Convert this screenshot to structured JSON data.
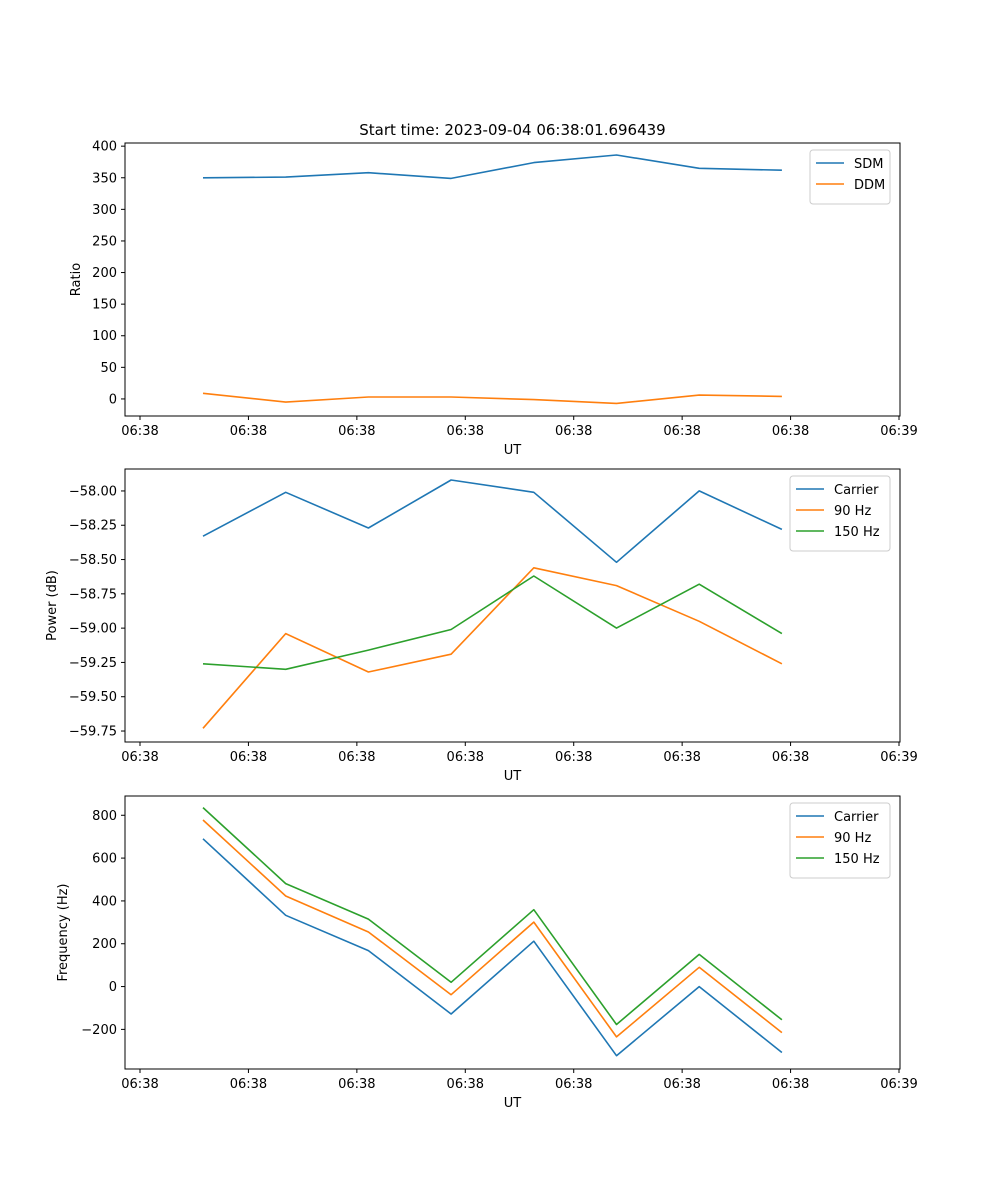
{
  "figure": {
    "title": "Start time: 2023-09-04 06:38:01.696439"
  },
  "colors": {
    "c0": "#1f77b4",
    "c1": "#ff7f0e",
    "c2": "#2ca02c"
  },
  "chart_data": [
    {
      "type": "line",
      "title": "Start time: 2023-09-04 06:38:01.696439",
      "xlabel": "UT",
      "ylabel": "Ratio",
      "x_ticks": [
        "06:38",
        "06:38",
        "06:38",
        "06:38",
        "06:38",
        "06:38",
        "06:38",
        "06:39"
      ],
      "x": [
        1,
        2,
        3,
        4,
        5,
        6,
        7,
        8
      ],
      "xlim": [
        -0.2,
        9.1
      ],
      "ylim": [
        -27,
        405
      ],
      "y_ticks": [
        0,
        50,
        100,
        150,
        200,
        250,
        300,
        350,
        400
      ],
      "y_tick_labels": [
        "0",
        "50",
        "100",
        "150",
        "200",
        "250",
        "300",
        "350",
        "400"
      ],
      "legend": "top-right",
      "series": [
        {
          "name": "SDM",
          "color": "#1f77b4",
          "values": [
            350,
            351,
            358,
            349,
            374,
            386,
            365,
            362
          ]
        },
        {
          "name": "DDM",
          "color": "#ff7f0e",
          "values": [
            9,
            -5,
            3,
            3,
            -1,
            -7,
            6,
            4
          ]
        }
      ]
    },
    {
      "type": "line",
      "title": "",
      "xlabel": "UT",
      "ylabel": "Power (dB)",
      "x_ticks": [
        "06:38",
        "06:38",
        "06:38",
        "06:38",
        "06:38",
        "06:38",
        "06:38",
        "06:39"
      ],
      "x": [
        1,
        2,
        3,
        4,
        5,
        6,
        7,
        8
      ],
      "xlim": [
        -0.2,
        9.1
      ],
      "ylim": [
        -59.83,
        -57.84
      ],
      "y_ticks": [
        -59.75,
        -59.5,
        -59.25,
        -59.0,
        -58.75,
        -58.5,
        -58.25,
        -58.0
      ],
      "y_tick_labels": [
        "−59.75",
        "−59.50",
        "−59.25",
        "−59.00",
        "−58.75",
        "−58.50",
        "−58.25",
        "−58.00"
      ],
      "legend": "top-right",
      "series": [
        {
          "name": "Carrier",
          "color": "#1f77b4",
          "values": [
            -58.33,
            -58.01,
            -58.27,
            -57.92,
            -58.01,
            -58.52,
            -58.0,
            -58.28
          ]
        },
        {
          "name": "90 Hz",
          "color": "#ff7f0e",
          "values": [
            -59.73,
            -59.04,
            -59.32,
            -59.19,
            -58.56,
            -58.69,
            -58.95,
            -59.26
          ]
        },
        {
          "name": "150 Hz",
          "color": "#2ca02c",
          "values": [
            -59.26,
            -59.3,
            -59.16,
            -59.01,
            -58.62,
            -59.0,
            -58.68,
            -59.04
          ]
        }
      ]
    },
    {
      "type": "line",
      "title": "",
      "xlabel": "UT",
      "ylabel": "Frequency (Hz)",
      "x_ticks": [
        "06:38",
        "06:38",
        "06:38",
        "06:38",
        "06:38",
        "06:38",
        "06:38",
        "06:39"
      ],
      "x": [
        1,
        2,
        3,
        4,
        5,
        6,
        7,
        8
      ],
      "xlim": [
        -0.2,
        9.1
      ],
      "ylim": [
        -385,
        890
      ],
      "y_ticks": [
        -200,
        0,
        200,
        400,
        600,
        800
      ],
      "y_tick_labels": [
        "−200",
        "0",
        "200",
        "400",
        "600",
        "800"
      ],
      "legend": "top-right",
      "series": [
        {
          "name": "Carrier",
          "color": "#1f77b4",
          "values": [
            690,
            333,
            168,
            -128,
            212,
            -323,
            0,
            -308
          ]
        },
        {
          "name": "90 Hz",
          "color": "#ff7f0e",
          "values": [
            778,
            423,
            255,
            -38,
            301,
            -235,
            90,
            -215
          ]
        },
        {
          "name": "150 Hz",
          "color": "#2ca02c",
          "values": [
            836,
            481,
            315,
            20,
            359,
            -177,
            150,
            -155
          ]
        }
      ]
    }
  ]
}
